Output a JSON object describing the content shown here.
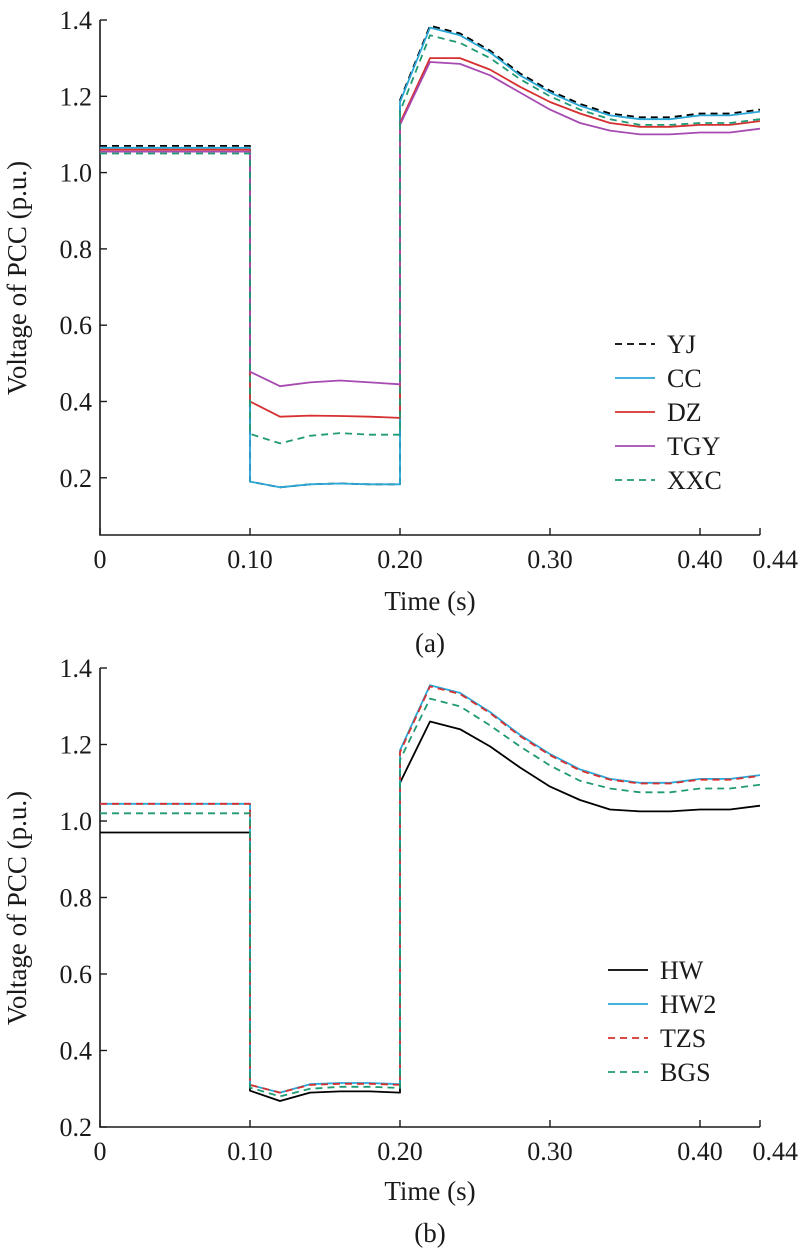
{
  "chart_data": [
    {
      "type": "line",
      "panel_label": "(a)",
      "xlabel": "Time (s)",
      "ylabel": "Voltage of PCC (p.u.)",
      "xlim": [
        0,
        0.44
      ],
      "ylim": [
        0.05,
        1.4
      ],
      "xticks": [
        0,
        0.1,
        0.2,
        0.3,
        0.4,
        0.44
      ],
      "xtick_labels": [
        "0",
        "0.10",
        "0.20",
        "0.30",
        "0.40",
        "0.44"
      ],
      "yticks": [
        0.2,
        0.4,
        0.6,
        0.8,
        1.0,
        1.2,
        1.4
      ],
      "ytick_labels": [
        "0.2",
        "0.4",
        "0.6",
        "0.8",
        "1.0",
        "1.2",
        "1.4"
      ],
      "grid": false,
      "legend_position": "lower-right",
      "series": [
        {
          "name": "YJ",
          "color": "#000000",
          "dash": "dashed",
          "x": [
            0,
            0.1,
            0.1,
            0.12,
            0.14,
            0.16,
            0.18,
            0.2,
            0.2,
            0.22,
            0.24,
            0.26,
            0.28,
            0.3,
            0.32,
            0.34,
            0.36,
            0.38,
            0.4,
            0.42,
            0.44
          ],
          "y": [
            1.07,
            1.07,
            0.19,
            0.175,
            0.183,
            0.185,
            0.183,
            0.183,
            1.19,
            1.385,
            1.365,
            1.32,
            1.26,
            1.215,
            1.18,
            1.155,
            1.145,
            1.145,
            1.155,
            1.155,
            1.165
          ]
        },
        {
          "name": "CC",
          "color": "#2aa7d5",
          "dash": "solid",
          "x": [
            0,
            0.1,
            0.1,
            0.12,
            0.14,
            0.16,
            0.18,
            0.2,
            0.2,
            0.22,
            0.24,
            0.26,
            0.28,
            0.3,
            0.32,
            0.34,
            0.36,
            0.38,
            0.4,
            0.42,
            0.44
          ],
          "y": [
            1.065,
            1.065,
            0.19,
            0.175,
            0.183,
            0.185,
            0.183,
            0.183,
            1.185,
            1.38,
            1.36,
            1.315,
            1.255,
            1.21,
            1.175,
            1.15,
            1.14,
            1.14,
            1.15,
            1.15,
            1.16
          ]
        },
        {
          "name": "DZ",
          "color": "#d62f2f",
          "dash": "solid",
          "x": [
            0,
            0.1,
            0.1,
            0.12,
            0.14,
            0.16,
            0.18,
            0.2,
            0.2,
            0.22,
            0.24,
            0.26,
            0.28,
            0.3,
            0.32,
            0.34,
            0.36,
            0.38,
            0.4,
            0.42,
            0.44
          ],
          "y": [
            1.06,
            1.06,
            0.4,
            0.36,
            0.363,
            0.362,
            0.36,
            0.357,
            1.13,
            1.3,
            1.3,
            1.27,
            1.225,
            1.185,
            1.155,
            1.13,
            1.12,
            1.12,
            1.125,
            1.125,
            1.135
          ]
        },
        {
          "name": "TGY",
          "color": "#a64ab1",
          "dash": "solid",
          "x": [
            0,
            0.1,
            0.1,
            0.12,
            0.14,
            0.16,
            0.18,
            0.2,
            0.2,
            0.22,
            0.24,
            0.26,
            0.28,
            0.3,
            0.32,
            0.34,
            0.36,
            0.38,
            0.4,
            0.42,
            0.44
          ],
          "y": [
            1.055,
            1.055,
            0.478,
            0.44,
            0.45,
            0.455,
            0.45,
            0.445,
            1.125,
            1.29,
            1.285,
            1.255,
            1.21,
            1.165,
            1.13,
            1.11,
            1.1,
            1.1,
            1.105,
            1.105,
            1.115
          ]
        },
        {
          "name": "XXC",
          "color": "#1f9a73",
          "dash": "dashed",
          "x": [
            0,
            0.1,
            0.1,
            0.12,
            0.14,
            0.16,
            0.18,
            0.2,
            0.2,
            0.22,
            0.24,
            0.26,
            0.28,
            0.3,
            0.32,
            0.34,
            0.36,
            0.38,
            0.4,
            0.42,
            0.44
          ],
          "y": [
            1.05,
            1.05,
            0.315,
            0.29,
            0.31,
            0.317,
            0.313,
            0.313,
            1.16,
            1.36,
            1.34,
            1.3,
            1.245,
            1.2,
            1.165,
            1.14,
            1.125,
            1.125,
            1.13,
            1.13,
            1.14
          ]
        }
      ]
    },
    {
      "type": "line",
      "panel_label": "(b)",
      "xlabel": "Time (s)",
      "ylabel": "Voltage of PCC (p.u.)",
      "xlim": [
        0,
        0.44
      ],
      "ylim": [
        0.2,
        1.4
      ],
      "xticks": [
        0,
        0.1,
        0.2,
        0.3,
        0.4,
        0.44
      ],
      "xtick_labels": [
        "0",
        "0.10",
        "0.20",
        "0.30",
        "0.40",
        "0.44"
      ],
      "yticks": [
        0.2,
        0.4,
        0.6,
        0.8,
        1.0,
        1.2,
        1.4
      ],
      "ytick_labels": [
        "0.2",
        "0.4",
        "0.6",
        "0.8",
        "1.0",
        "1.2",
        "1.4"
      ],
      "grid": false,
      "legend_position": "lower-right",
      "series": [
        {
          "name": "HW",
          "color": "#000000",
          "dash": "solid",
          "x": [
            0,
            0.1,
            0.1,
            0.12,
            0.14,
            0.16,
            0.18,
            0.2,
            0.2,
            0.22,
            0.24,
            0.26,
            0.28,
            0.3,
            0.32,
            0.34,
            0.36,
            0.38,
            0.4,
            0.42,
            0.44
          ],
          "y": [
            0.97,
            0.97,
            0.295,
            0.268,
            0.29,
            0.293,
            0.293,
            0.29,
            1.1,
            1.26,
            1.24,
            1.195,
            1.14,
            1.09,
            1.055,
            1.03,
            1.025,
            1.025,
            1.03,
            1.03,
            1.04
          ]
        },
        {
          "name": "HW2",
          "color": "#2aa7d5",
          "dash": "solid",
          "x": [
            0,
            0.1,
            0.1,
            0.12,
            0.14,
            0.16,
            0.18,
            0.2,
            0.2,
            0.22,
            0.24,
            0.26,
            0.28,
            0.3,
            0.32,
            0.34,
            0.36,
            0.38,
            0.4,
            0.42,
            0.44
          ],
          "y": [
            1.045,
            1.045,
            0.31,
            0.29,
            0.312,
            0.315,
            0.315,
            0.312,
            1.185,
            1.355,
            1.335,
            1.285,
            1.225,
            1.175,
            1.135,
            1.11,
            1.1,
            1.1,
            1.11,
            1.11,
            1.12
          ]
        },
        {
          "name": "TZS",
          "color": "#d62f2f",
          "dash": "dashed",
          "x": [
            0,
            0.1,
            0.1,
            0.12,
            0.14,
            0.16,
            0.18,
            0.2,
            0.2,
            0.22,
            0.24,
            0.26,
            0.28,
            0.3,
            0.32,
            0.34,
            0.36,
            0.38,
            0.4,
            0.42,
            0.44
          ],
          "y": [
            1.045,
            1.045,
            0.31,
            0.29,
            0.31,
            0.313,
            0.313,
            0.31,
            1.18,
            1.352,
            1.332,
            1.282,
            1.222,
            1.172,
            1.132,
            1.108,
            1.098,
            1.098,
            1.108,
            1.108,
            1.118
          ]
        },
        {
          "name": "BGS",
          "color": "#1f9a73",
          "dash": "dashed",
          "x": [
            0,
            0.1,
            0.1,
            0.12,
            0.14,
            0.16,
            0.18,
            0.2,
            0.2,
            0.22,
            0.24,
            0.26,
            0.28,
            0.3,
            0.32,
            0.34,
            0.36,
            0.38,
            0.4,
            0.42,
            0.44
          ],
          "y": [
            1.02,
            1.02,
            0.303,
            0.28,
            0.3,
            0.305,
            0.305,
            0.302,
            1.16,
            1.32,
            1.3,
            1.25,
            1.195,
            1.145,
            1.105,
            1.085,
            1.075,
            1.075,
            1.085,
            1.085,
            1.095
          ]
        }
      ]
    }
  ]
}
